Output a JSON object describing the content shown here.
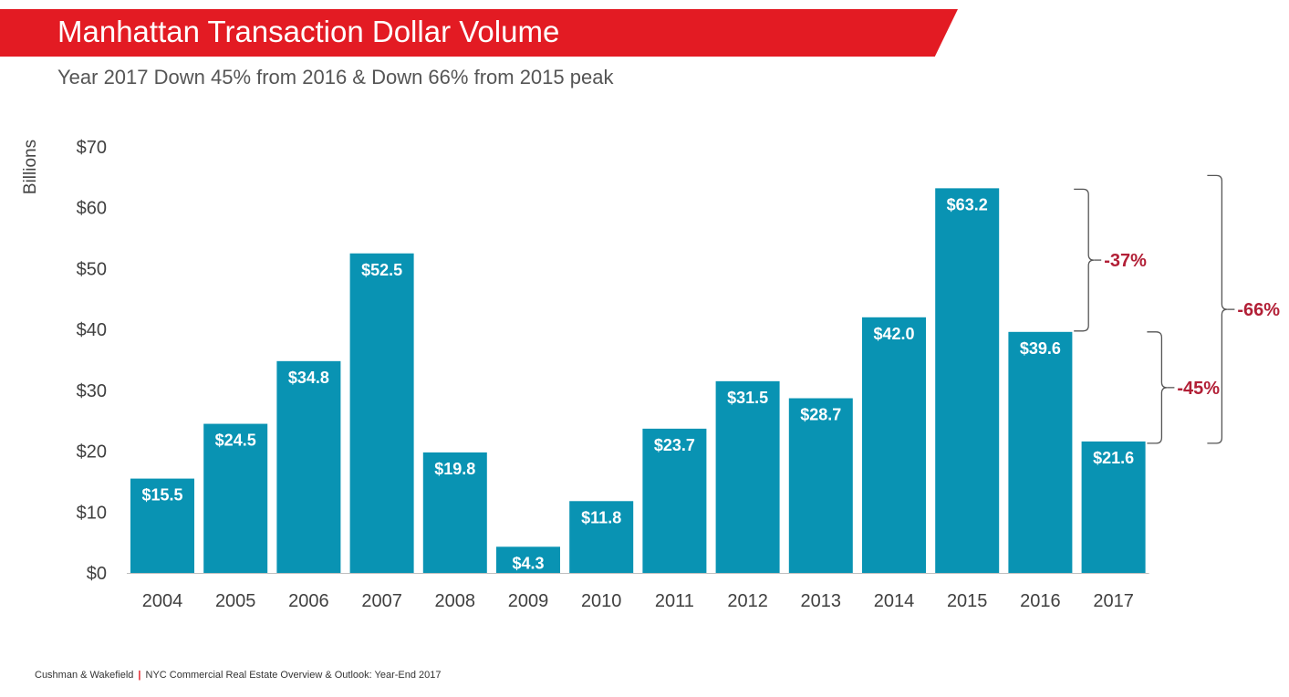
{
  "header": {
    "title": "Manhattan Transaction Dollar Volume",
    "subtitle": "Year 2017 Down 45% from 2016 & Down 66% from 2015 peak"
  },
  "footer": {
    "company": "Cushman & Wakefield",
    "separator": "|",
    "report": "NYC Commercial Real Estate Overview & Outlook: Year-End 2017"
  },
  "colors": {
    "banner": "#e31b23",
    "bar": "#0993b3",
    "annotation": "#b21f36",
    "axis_text": "#404040"
  },
  "chart_data": {
    "type": "bar",
    "title": "Manhattan Transaction Dollar Volume",
    "ylabel": "Billions",
    "xlabel": "",
    "ylim": [
      0,
      70
    ],
    "yticks": [
      0,
      10,
      20,
      30,
      40,
      50,
      60,
      70
    ],
    "ytick_labels": [
      "$0",
      "$10",
      "$20",
      "$30",
      "$40",
      "$50",
      "$60",
      "$70"
    ],
    "grid": false,
    "categories": [
      "2004",
      "2005",
      "2006",
      "2007",
      "2008",
      "2009",
      "2010",
      "2011",
      "2012",
      "2013",
      "2014",
      "2015",
      "2016",
      "2017"
    ],
    "values": [
      15.5,
      24.5,
      34.8,
      52.5,
      19.8,
      4.3,
      11.8,
      23.7,
      31.5,
      28.7,
      42.0,
      63.2,
      39.6,
      21.6
    ],
    "data_labels": [
      "$15.5",
      "$24.5",
      "$34.8",
      "$52.5",
      "$19.8",
      "$4.3",
      "$11.8",
      "$23.7",
      "$31.5",
      "$28.7",
      "$42.0",
      "$63.2",
      "$39.6",
      "$21.6"
    ],
    "annotations": [
      {
        "label": "-37%",
        "from": "2015",
        "to": "2016"
      },
      {
        "label": "-45%",
        "from": "2016",
        "to": "2017"
      },
      {
        "label": "-66%",
        "from": "2015",
        "to": "2017"
      }
    ]
  }
}
